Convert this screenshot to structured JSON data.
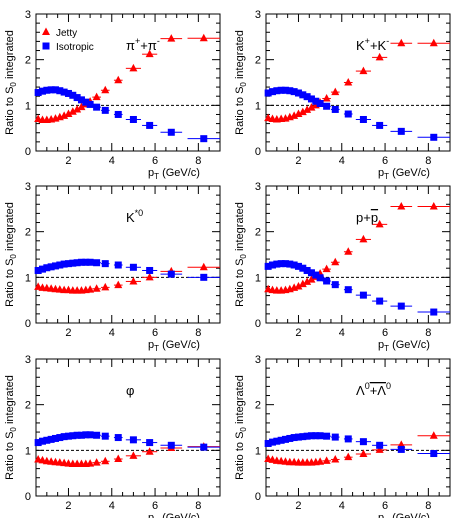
{
  "figure": {
    "ylabel_parts": [
      "Ratio to S",
      "0",
      " integrated"
    ],
    "xlabel_parts": [
      "p",
      "T",
      " (GeV/c)"
    ],
    "legend": [
      {
        "label": "Jetty",
        "marker": "triangle",
        "color": "#ff0000"
      },
      {
        "label": "Isotropic",
        "marker": "square",
        "color": "#0000ff"
      }
    ],
    "colors": {
      "jetty": "#ff0000",
      "isotropic": "#0000ff",
      "reference_line": "#000000"
    }
  },
  "chart_data": [
    {
      "type": "scatter",
      "panel_label": {
        "base": "π",
        "sup": "+",
        "mid": "+π",
        "sup2": "-"
      },
      "xlim": [
        0.5,
        9
      ],
      "ylim": [
        0,
        3
      ],
      "xticks": [
        2,
        4,
        6,
        8
      ],
      "yticks": [
        0,
        1,
        2,
        3
      ],
      "reference_line": 1,
      "series": [
        {
          "name": "Jetty",
          "x": [
            0.6,
            0.8,
            1.0,
            1.2,
            1.4,
            1.6,
            1.8,
            2.0,
            2.2,
            2.4,
            2.6,
            2.8,
            3.0,
            3.3,
            3.7,
            4.3,
            5.0,
            5.75,
            6.75,
            8.25
          ],
          "y": [
            0.7,
            0.68,
            0.68,
            0.69,
            0.71,
            0.74,
            0.77,
            0.81,
            0.86,
            0.91,
            0.96,
            1.02,
            1.08,
            1.18,
            1.33,
            1.55,
            1.81,
            2.12,
            2.46,
            2.47
          ]
        },
        {
          "name": "Isotropic",
          "x": [
            0.6,
            0.8,
            1.0,
            1.2,
            1.4,
            1.6,
            1.8,
            2.0,
            2.2,
            2.4,
            2.6,
            2.8,
            3.0,
            3.3,
            3.7,
            4.3,
            5.0,
            5.75,
            6.75,
            8.25
          ],
          "y": [
            1.28,
            1.31,
            1.33,
            1.34,
            1.34,
            1.32,
            1.29,
            1.26,
            1.22,
            1.17,
            1.12,
            1.07,
            1.02,
            0.96,
            0.89,
            0.8,
            0.69,
            0.56,
            0.41,
            0.27
          ]
        }
      ]
    },
    {
      "type": "scatter",
      "panel_label": {
        "base": "K",
        "sup": "+",
        "mid": "+K",
        "sup2": "-"
      },
      "xlim": [
        0.5,
        9
      ],
      "ylim": [
        0,
        3
      ],
      "xticks": [
        2,
        4,
        6,
        8
      ],
      "yticks": [
        0,
        1,
        2,
        3
      ],
      "reference_line": 1,
      "series": [
        {
          "name": "Jetty",
          "x": [
            0.6,
            0.8,
            1.0,
            1.2,
            1.4,
            1.6,
            1.8,
            2.0,
            2.2,
            2.4,
            2.6,
            2.8,
            3.0,
            3.3,
            3.7,
            4.3,
            5.0,
            5.75,
            6.75,
            8.25
          ],
          "y": [
            0.72,
            0.7,
            0.69,
            0.7,
            0.71,
            0.74,
            0.77,
            0.81,
            0.85,
            0.9,
            0.95,
            1.0,
            1.06,
            1.15,
            1.29,
            1.5,
            1.75,
            2.05,
            2.36,
            2.36
          ]
        },
        {
          "name": "Isotropic",
          "x": [
            0.6,
            0.8,
            1.0,
            1.2,
            1.4,
            1.6,
            1.8,
            2.0,
            2.2,
            2.4,
            2.6,
            2.8,
            3.0,
            3.3,
            3.7,
            4.3,
            5.0,
            5.75,
            6.75,
            8.25
          ],
          "y": [
            1.27,
            1.3,
            1.32,
            1.33,
            1.33,
            1.32,
            1.3,
            1.27,
            1.23,
            1.19,
            1.14,
            1.09,
            1.04,
            0.98,
            0.91,
            0.81,
            0.69,
            0.56,
            0.43,
            0.3
          ]
        }
      ]
    },
    {
      "type": "scatter",
      "panel_label": {
        "base": "K",
        "sup": "*0",
        "mid": "",
        "sup2": ""
      },
      "xlim": [
        0.5,
        9
      ],
      "ylim": [
        0,
        3
      ],
      "xticks": [
        2,
        4,
        6,
        8
      ],
      "yticks": [
        0,
        1,
        2,
        3
      ],
      "reference_line": 1,
      "series": [
        {
          "name": "Jetty",
          "x": [
            0.6,
            0.8,
            1.0,
            1.2,
            1.4,
            1.6,
            1.8,
            2.0,
            2.2,
            2.4,
            2.6,
            2.8,
            3.0,
            3.3,
            3.7,
            4.3,
            5.0,
            5.75,
            6.75,
            8.25
          ],
          "y": [
            0.79,
            0.77,
            0.76,
            0.75,
            0.74,
            0.73,
            0.72,
            0.72,
            0.71,
            0.71,
            0.71,
            0.72,
            0.73,
            0.75,
            0.78,
            0.83,
            0.91,
            1.0,
            1.13,
            1.22
          ]
        },
        {
          "name": "Isotropic",
          "x": [
            0.6,
            0.8,
            1.0,
            1.2,
            1.4,
            1.6,
            1.8,
            2.0,
            2.2,
            2.4,
            2.6,
            2.8,
            3.0,
            3.3,
            3.7,
            4.3,
            5.0,
            5.75,
            6.75,
            8.25
          ],
          "y": [
            1.15,
            1.18,
            1.21,
            1.23,
            1.25,
            1.27,
            1.29,
            1.3,
            1.31,
            1.32,
            1.33,
            1.33,
            1.33,
            1.32,
            1.3,
            1.27,
            1.22,
            1.15,
            1.07,
            1.0
          ]
        }
      ]
    },
    {
      "type": "scatter",
      "panel_label": {
        "base": "p+p",
        "sup": "",
        "mid": "",
        "sup2": "",
        "overline_last": true
      },
      "xlim": [
        0.5,
        9
      ],
      "ylim": [
        0,
        3
      ],
      "xticks": [
        2,
        4,
        6,
        8
      ],
      "yticks": [
        0,
        1,
        2,
        3
      ],
      "reference_line": 1,
      "series": [
        {
          "name": "Jetty",
          "x": [
            0.6,
            0.8,
            1.0,
            1.2,
            1.4,
            1.6,
            1.8,
            2.0,
            2.2,
            2.4,
            2.6,
            2.8,
            3.0,
            3.3,
            3.7,
            4.3,
            5.0,
            5.75,
            6.75,
            8.25
          ],
          "y": [
            0.74,
            0.72,
            0.71,
            0.71,
            0.72,
            0.74,
            0.77,
            0.8,
            0.85,
            0.9,
            0.95,
            1.01,
            1.08,
            1.18,
            1.33,
            1.56,
            1.83,
            2.16,
            2.55,
            2.55
          ]
        },
        {
          "name": "Isotropic",
          "x": [
            0.6,
            0.8,
            1.0,
            1.2,
            1.4,
            1.6,
            1.8,
            2.0,
            2.2,
            2.4,
            2.6,
            2.8,
            3.0,
            3.3,
            3.7,
            4.3,
            5.0,
            5.75,
            6.75,
            8.25
          ],
          "y": [
            1.24,
            1.27,
            1.29,
            1.3,
            1.3,
            1.29,
            1.27,
            1.24,
            1.2,
            1.15,
            1.1,
            1.05,
            0.99,
            0.92,
            0.84,
            0.73,
            0.61,
            0.48,
            0.37,
            0.24
          ]
        }
      ]
    },
    {
      "type": "scatter",
      "panel_label": {
        "base": "φ",
        "sup": "",
        "mid": "",
        "sup2": ""
      },
      "xlim": [
        0.5,
        9
      ],
      "ylim": [
        0,
        3
      ],
      "xticks": [
        2,
        4,
        6,
        8
      ],
      "yticks": [
        0,
        1,
        2,
        3
      ],
      "reference_line": 1,
      "series": [
        {
          "name": "Jetty",
          "x": [
            0.6,
            0.8,
            1.0,
            1.2,
            1.4,
            1.6,
            1.8,
            2.0,
            2.2,
            2.4,
            2.6,
            2.8,
            3.0,
            3.3,
            3.7,
            4.3,
            5.0,
            5.75,
            6.75,
            8.25
          ],
          "y": [
            0.8,
            0.78,
            0.76,
            0.75,
            0.74,
            0.73,
            0.72,
            0.71,
            0.7,
            0.7,
            0.7,
            0.7,
            0.71,
            0.73,
            0.76,
            0.81,
            0.88,
            0.97,
            1.05,
            1.08
          ]
        },
        {
          "name": "Isotropic",
          "x": [
            0.6,
            0.8,
            1.0,
            1.2,
            1.4,
            1.6,
            1.8,
            2.0,
            2.2,
            2.4,
            2.6,
            2.8,
            3.0,
            3.3,
            3.7,
            4.3,
            5.0,
            5.75,
            6.75,
            8.25
          ],
          "y": [
            1.17,
            1.2,
            1.22,
            1.24,
            1.26,
            1.28,
            1.3,
            1.31,
            1.32,
            1.33,
            1.33,
            1.34,
            1.34,
            1.33,
            1.31,
            1.28,
            1.23,
            1.17,
            1.11,
            1.07
          ]
        }
      ]
    },
    {
      "type": "scatter",
      "panel_label": {
        "base": "Λ",
        "sup": "0",
        "mid": "+Λ",
        "sup2": "0",
        "overline_last": true
      },
      "xlim": [
        0.5,
        9
      ],
      "ylim": [
        0,
        3
      ],
      "xticks": [
        2,
        4,
        6,
        8
      ],
      "yticks": [
        0,
        1,
        2,
        3
      ],
      "reference_line": 1,
      "series": [
        {
          "name": "Jetty",
          "x": [
            0.6,
            0.8,
            1.0,
            1.2,
            1.4,
            1.6,
            1.8,
            2.0,
            2.2,
            2.4,
            2.6,
            2.8,
            3.0,
            3.3,
            3.7,
            4.3,
            5.0,
            5.75,
            6.75,
            8.25
          ],
          "y": [
            0.81,
            0.79,
            0.77,
            0.76,
            0.75,
            0.74,
            0.74,
            0.73,
            0.73,
            0.73,
            0.73,
            0.74,
            0.75,
            0.77,
            0.8,
            0.85,
            0.92,
            1.01,
            1.12,
            1.32
          ]
        },
        {
          "name": "Isotropic",
          "x": [
            0.6,
            0.8,
            1.0,
            1.2,
            1.4,
            1.6,
            1.8,
            2.0,
            2.2,
            2.4,
            2.6,
            2.8,
            3.0,
            3.3,
            3.7,
            4.3,
            5.0,
            5.75,
            6.75,
            8.25
          ],
          "y": [
            1.15,
            1.18,
            1.2,
            1.22,
            1.24,
            1.26,
            1.28,
            1.29,
            1.3,
            1.31,
            1.32,
            1.32,
            1.32,
            1.31,
            1.29,
            1.25,
            1.19,
            1.11,
            1.02,
            0.93
          ]
        }
      ]
    }
  ]
}
